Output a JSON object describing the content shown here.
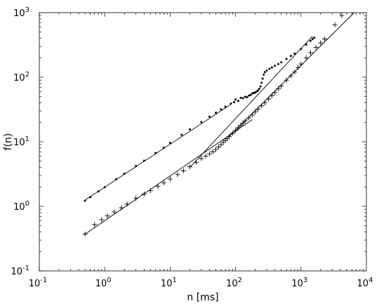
{
  "chart_data": {
    "type": "scatter",
    "title": "",
    "xlabel": "n [ms]",
    "ylabel": "f(n)",
    "xscale": "log",
    "yscale": "log",
    "xlim": [
      0.1,
      10000
    ],
    "ylim": [
      0.1,
      1000
    ],
    "grid": false,
    "legend": "none",
    "x_ticks": [
      {
        "value": 0.1,
        "base": "10",
        "exp": "-1"
      },
      {
        "value": 1,
        "base": "10",
        "exp": "0"
      },
      {
        "value": 10,
        "base": "10",
        "exp": "1"
      },
      {
        "value": 100,
        "base": "10",
        "exp": "2"
      },
      {
        "value": 1000,
        "base": "10",
        "exp": "3"
      },
      {
        "value": 10000,
        "base": "10",
        "exp": "4"
      }
    ],
    "y_ticks": [
      {
        "value": 0.1,
        "base": "10",
        "exp": "-1"
      },
      {
        "value": 1,
        "base": "10",
        "exp": "0"
      },
      {
        "value": 10,
        "base": "10",
        "exp": "1"
      },
      {
        "value": 100,
        "base": "10",
        "exp": "2"
      },
      {
        "value": 1000,
        "base": "10",
        "exp": "3"
      }
    ],
    "series": [
      {
        "marker": "dot",
        "points": [
          [
            0.5,
            1.22
          ],
          [
            0.6,
            1.39
          ],
          [
            0.8,
            1.7
          ],
          [
            1,
            1.98
          ],
          [
            1.5,
            2.63
          ],
          [
            2,
            3.2
          ],
          [
            3,
            4.2
          ],
          [
            4,
            5.1
          ],
          [
            6,
            6.7
          ],
          [
            8,
            8.1
          ],
          [
            10,
            9.6
          ],
          [
            15,
            12.8
          ],
          [
            20,
            15.6
          ],
          [
            30,
            20.2
          ],
          [
            40,
            24.5
          ],
          [
            50,
            28.2
          ],
          [
            60,
            31.7
          ],
          [
            70,
            35
          ],
          [
            85,
            39
          ],
          [
            95,
            41
          ],
          [
            100,
            45
          ],
          [
            110,
            43
          ],
          [
            120,
            48
          ],
          [
            130,
            47
          ],
          [
            140,
            50
          ],
          [
            150,
            49
          ],
          [
            160,
            52
          ],
          [
            170,
            53
          ],
          [
            180,
            56
          ],
          [
            190,
            57
          ],
          [
            200,
            58
          ],
          [
            210,
            60
          ],
          [
            220,
            62
          ],
          [
            230,
            66
          ],
          [
            240,
            72
          ],
          [
            250,
            82
          ],
          [
            260,
            95
          ],
          [
            270,
            110
          ],
          [
            280,
            120
          ],
          [
            300,
            127
          ],
          [
            330,
            135
          ],
          [
            360,
            142
          ],
          [
            400,
            150
          ],
          [
            450,
            160
          ],
          [
            500,
            170
          ],
          [
            600,
            192
          ],
          [
            700,
            213
          ],
          [
            800,
            233
          ],
          [
            1000,
            273
          ],
          [
            1200,
            320
          ],
          [
            1400,
            365
          ],
          [
            1500,
            390
          ],
          [
            1600,
            410
          ]
        ]
      },
      {
        "marker": "plus",
        "points": [
          [
            0.5,
            0.37
          ],
          [
            0.7,
            0.52
          ],
          [
            0.9,
            0.62
          ],
          [
            1.1,
            0.71
          ],
          [
            1.4,
            0.82
          ],
          [
            1.8,
            0.95
          ],
          [
            2.2,
            1.08
          ],
          [
            3,
            1.33
          ],
          [
            4,
            1.55
          ],
          [
            5,
            1.75
          ],
          [
            6.5,
            2.05
          ],
          [
            8,
            2.3
          ],
          [
            10,
            2.65
          ],
          [
            13,
            3.1
          ],
          [
            16,
            3.55
          ],
          [
            20,
            4.1
          ],
          [
            25,
            4.8
          ],
          [
            30,
            5.5
          ],
          [
            35,
            6
          ],
          [
            40,
            6.5
          ],
          [
            45,
            7
          ],
          [
            50,
            7.6
          ],
          [
            55,
            8.3
          ],
          [
            60,
            9
          ],
          [
            65,
            9.8
          ],
          [
            70,
            10.5
          ],
          [
            75,
            11.2
          ],
          [
            80,
            12
          ],
          [
            90,
            13.5
          ],
          [
            100,
            15
          ],
          [
            110,
            16.5
          ],
          [
            120,
            18
          ],
          [
            130,
            19.5
          ],
          [
            140,
            21
          ],
          [
            160,
            23.5
          ],
          [
            180,
            26
          ],
          [
            200,
            29
          ],
          [
            220,
            32
          ],
          [
            250,
            36
          ],
          [
            280,
            40
          ],
          [
            320,
            46
          ],
          [
            360,
            52
          ],
          [
            400,
            58
          ],
          [
            450,
            66
          ],
          [
            500,
            73
          ],
          [
            600,
            90
          ],
          [
            700,
            105
          ],
          [
            800,
            120
          ],
          [
            900,
            140
          ],
          [
            1000,
            160
          ],
          [
            1200,
            200
          ],
          [
            1400,
            240
          ],
          [
            1700,
            290
          ],
          [
            2000,
            340
          ],
          [
            2300,
            390
          ],
          [
            3300,
            650
          ],
          [
            4200,
            900
          ]
        ]
      }
    ],
    "fit_lines": [
      {
        "x": [
          0.5,
          85
        ],
        "y": [
          1.25,
          38
        ]
      },
      {
        "x": [
          0.5,
          180
        ],
        "y": [
          0.37,
          22
        ]
      },
      {
        "x": [
          20,
          1500
        ],
        "y": [
          4,
          430
        ]
      },
      {
        "x": [
          80,
          6500
        ],
        "y": [
          12,
          1000
        ]
      }
    ]
  }
}
